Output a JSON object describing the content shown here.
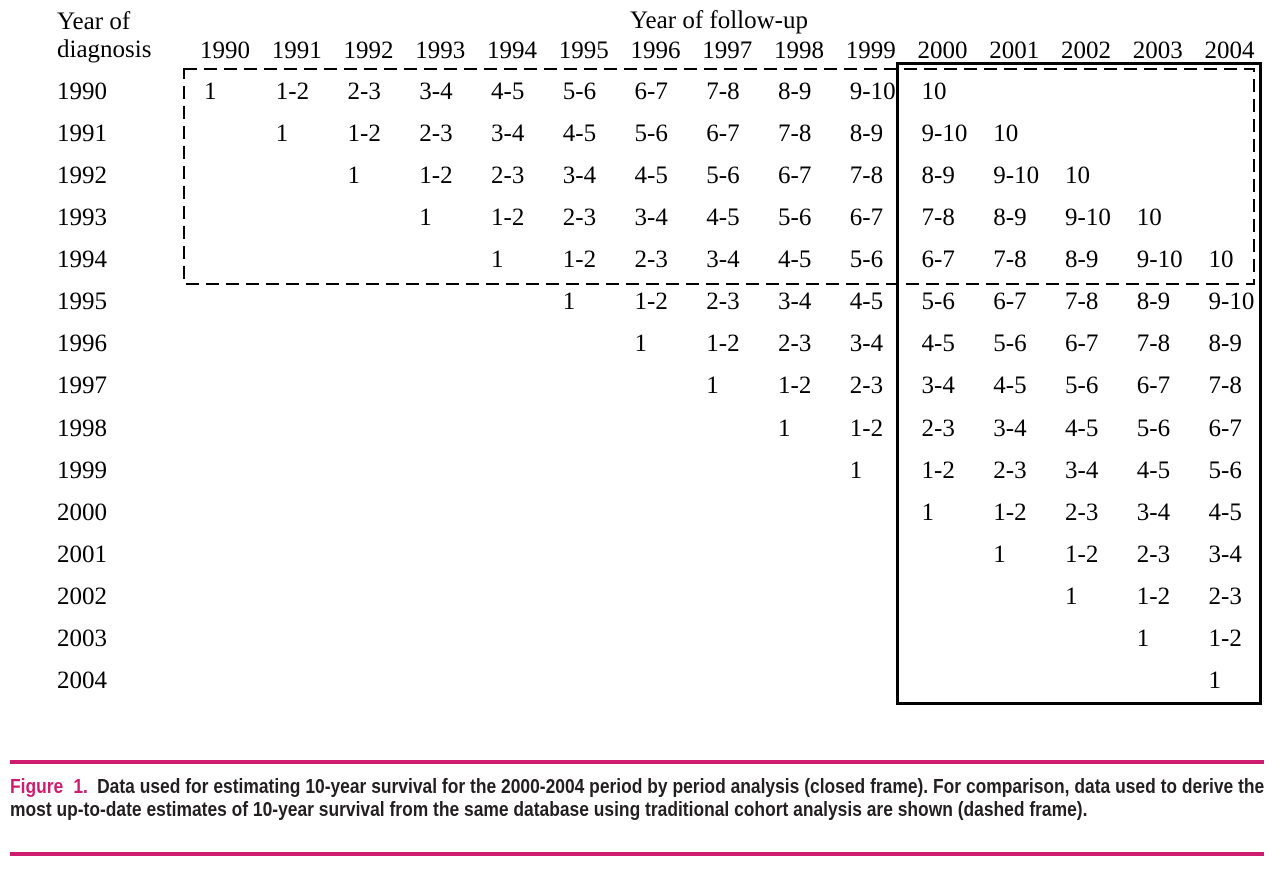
{
  "figure": {
    "row_axis_title_line1": "Year of",
    "row_axis_title_line2": "diagnosis",
    "column_axis_title": "Year of follow-up",
    "columns": [
      "1990",
      "1991",
      "1992",
      "1993",
      "1994",
      "1995",
      "1996",
      "1997",
      "1998",
      "1999",
      "2000",
      "2001",
      "2002",
      "2003",
      "2004"
    ],
    "rows": [
      {
        "label": "1990",
        "cells": [
          "1",
          "1-2",
          "2-3",
          "3-4",
          "4-5",
          "5-6",
          "6-7",
          "7-8",
          "8-9",
          "9-10",
          "10",
          "",
          "",
          "",
          ""
        ]
      },
      {
        "label": "1991",
        "cells": [
          "",
          "1",
          "1-2",
          "2-3",
          "3-4",
          "4-5",
          "5-6",
          "6-7",
          "7-8",
          "8-9",
          "9-10",
          "10",
          "",
          "",
          ""
        ]
      },
      {
        "label": "1992",
        "cells": [
          "",
          "",
          "1",
          "1-2",
          "2-3",
          "3-4",
          "4-5",
          "5-6",
          "6-7",
          "7-8",
          "8-9",
          "9-10",
          "10",
          "",
          ""
        ]
      },
      {
        "label": "1993",
        "cells": [
          "",
          "",
          "",
          "1",
          "1-2",
          "2-3",
          "3-4",
          "4-5",
          "5-6",
          "6-7",
          "7-8",
          "8-9",
          "9-10",
          "10",
          ""
        ]
      },
      {
        "label": "1994",
        "cells": [
          "",
          "",
          "",
          "",
          "1",
          "1-2",
          "2-3",
          "3-4",
          "4-5",
          "5-6",
          "6-7",
          "7-8",
          "8-9",
          "9-10",
          "10"
        ]
      },
      {
        "label": "1995",
        "cells": [
          "",
          "",
          "",
          "",
          "",
          "1",
          "1-2",
          "2-3",
          "3-4",
          "4-5",
          "5-6",
          "6-7",
          "7-8",
          "8-9",
          "9-10"
        ]
      },
      {
        "label": "1996",
        "cells": [
          "",
          "",
          "",
          "",
          "",
          "",
          "1",
          "1-2",
          "2-3",
          "3-4",
          "4-5",
          "5-6",
          "6-7",
          "7-8",
          "8-9"
        ]
      },
      {
        "label": "1997",
        "cells": [
          "",
          "",
          "",
          "",
          "",
          "",
          "",
          "1",
          "1-2",
          "2-3",
          "3-4",
          "4-5",
          "5-6",
          "6-7",
          "7-8"
        ]
      },
      {
        "label": "1998",
        "cells": [
          "",
          "",
          "",
          "",
          "",
          "",
          "",
          "",
          "1",
          "1-2",
          "2-3",
          "3-4",
          "4-5",
          "5-6",
          "6-7"
        ]
      },
      {
        "label": "1999",
        "cells": [
          "",
          "",
          "",
          "",
          "",
          "",
          "",
          "",
          "",
          "1",
          "1-2",
          "2-3",
          "3-4",
          "4-5",
          "5-6"
        ]
      },
      {
        "label": "2000",
        "cells": [
          "",
          "",
          "",
          "",
          "",
          "",
          "",
          "",
          "",
          "",
          "1",
          "1-2",
          "2-3",
          "3-4",
          "4-5"
        ]
      },
      {
        "label": "2001",
        "cells": [
          "",
          "",
          "",
          "",
          "",
          "",
          "",
          "",
          "",
          "",
          "",
          "1",
          "1-2",
          "2-3",
          "3-4"
        ]
      },
      {
        "label": "2002",
        "cells": [
          "",
          "",
          "",
          "",
          "",
          "",
          "",
          "",
          "",
          "",
          "",
          "",
          "1",
          "1-2",
          "2-3"
        ]
      },
      {
        "label": "2003",
        "cells": [
          "",
          "",
          "",
          "",
          "",
          "",
          "",
          "",
          "",
          "",
          "",
          "",
          "",
          "1",
          "1-2"
        ]
      },
      {
        "label": "2004",
        "cells": [
          "",
          "",
          "",
          "",
          "",
          "",
          "",
          "",
          "",
          "",
          "",
          "",
          "",
          "",
          "1"
        ]
      }
    ]
  },
  "caption": {
    "label": "Figure 1.",
    "text": "Data used for estimating 10-year survival for the 2000-2004 period by period analysis (closed frame). For comparison, data used to derive the most up-to-date estimates of 10-year survival from the same database using traditional cohort analysis are shown (dashed frame).",
    "accent_color": "#ce1d6e",
    "text_color": "#231f20"
  }
}
